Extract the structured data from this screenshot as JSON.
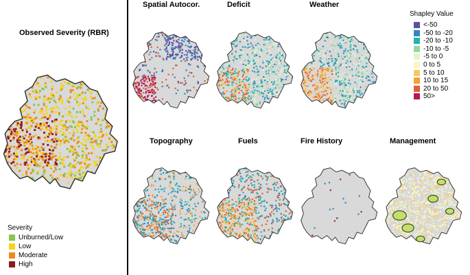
{
  "observed": {
    "title": "Observed Severity (RBR)"
  },
  "severity_legend": {
    "title": "Severity",
    "items": [
      {
        "label": "Unburned/Low",
        "color": "#8dc34f"
      },
      {
        "label": "Low",
        "color": "#f5d417"
      },
      {
        "label": "Moderate",
        "color": "#ee8a1d"
      },
      {
        "label": "High",
        "color": "#8b1a1a"
      }
    ]
  },
  "shapley_legend": {
    "title": "Shapley Value",
    "items": [
      {
        "label": "<-50",
        "color": "#5e4fa2"
      },
      {
        "label": "-50 to -20",
        "color": "#3288bd"
      },
      {
        "label": "-20 to -10",
        "color": "#1fb3b3"
      },
      {
        "label": "-10 to -5",
        "color": "#8fd9a8"
      },
      {
        "label": "-5 to 0",
        "color": "#e6f5c8"
      },
      {
        "label": "0 to 5",
        "color": "#fdf3c4"
      },
      {
        "label": "5 to 10",
        "color": "#f8c863"
      },
      {
        "label": "10 to 15",
        "color": "#f5a033"
      },
      {
        "label": "20 to 50",
        "color": "#e06035"
      },
      {
        "label": "50>",
        "color": "#b0185a"
      }
    ]
  },
  "panels": [
    {
      "title": "Spatial Autocor.",
      "scheme": "spatial"
    },
    {
      "title": "Deficit",
      "scheme": "deficit"
    },
    {
      "title": "Weather",
      "scheme": "weather"
    },
    {
      "title": "Topography",
      "scheme": "topo"
    },
    {
      "title": "Fuels",
      "scheme": "fuels"
    },
    {
      "title": "Fire History",
      "scheme": "history"
    },
    {
      "title": "Management",
      "scheme": "mgmt"
    }
  ]
}
